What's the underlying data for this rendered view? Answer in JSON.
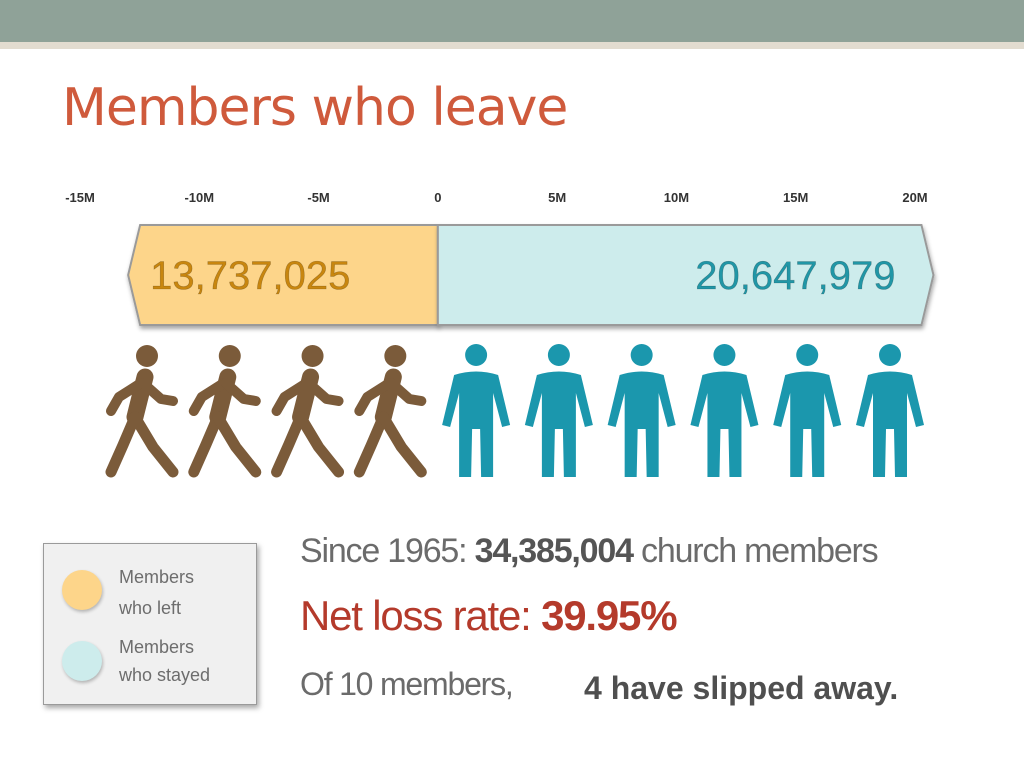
{
  "title": "Members who leave",
  "chart_data": {
    "type": "bar",
    "orientation": "horizontal",
    "stacked": "diverging",
    "x_ticks": [
      "-15M",
      "-10M",
      "-5M",
      "0",
      "5M",
      "10M",
      "15M",
      "20M"
    ],
    "xlim": [
      -15000000,
      20000000
    ],
    "series": [
      {
        "name": "Members who left",
        "value": -13737025,
        "label": "13,737,025",
        "color": "#fdd58a",
        "label_color": "#c8860f"
      },
      {
        "name": "Members who stayed",
        "value": 20647979,
        "label": "20,647,979",
        "color": "#cdecec",
        "label_color": "#2196a6"
      }
    ],
    "pictograph": {
      "left_count": 4,
      "stayed_count": 6,
      "left_color": "#7b5b3a",
      "stayed_color": "#1b97ad"
    }
  },
  "legend": [
    {
      "line1": "Members",
      "line2": "who left",
      "color": "#fdd58a"
    },
    {
      "line1": "Members",
      "line2": "who stayed",
      "color": "#cdecec"
    }
  ],
  "stats": {
    "since_prefix": "Since 1965: ",
    "since_value": "34,385,004",
    "since_suffix": " church members",
    "loss_prefix": "Net loss rate: ",
    "loss_value": "39.95%",
    "of_text": "Of 10 members,",
    "slipped_text": "4 have slipped away."
  }
}
